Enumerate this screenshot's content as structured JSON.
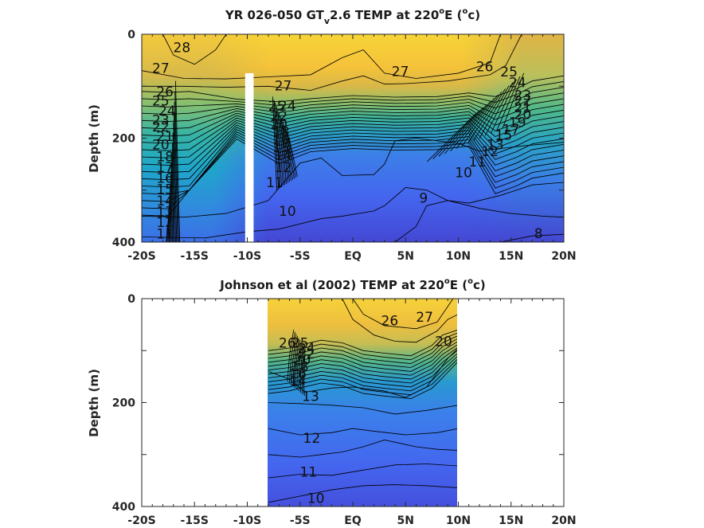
{
  "chart_data": [
    {
      "type": "contour",
      "title": {
        "prefix": "YR 026-050 GT",
        "subscript": "v",
        "middle": "2.6 TEMP at 220",
        "sup1": "o",
        "mid2": "E (",
        "sup2": "o",
        "suffix": "c)"
      },
      "ylabel": "Depth (m)",
      "xlim": [
        -20,
        20
      ],
      "ylim": [
        400,
        0
      ],
      "xticks": [
        -20,
        -15,
        -10,
        -5,
        0,
        5,
        10,
        15,
        20
      ],
      "xticklabels": [
        "-20S",
        "-15S",
        "-10S",
        "-5S",
        "EQ",
        "5N",
        "10N",
        "15N",
        "20N"
      ],
      "yticks": [
        0,
        200,
        400
      ],
      "yticklabels": [
        "0",
        "200",
        "400"
      ],
      "data_extent_x": [
        -20,
        20
      ],
      "masked_strip": {
        "x": [
          -10.2,
          -9.4
        ],
        "depth": [
          75,
          400
        ]
      },
      "contour_levels": [
        8,
        9,
        10,
        11,
        12,
        13,
        14,
        15,
        16,
        17,
        18,
        19,
        20,
        21,
        22,
        23,
        24,
        25,
        26,
        27,
        28
      ],
      "contour_labels": [
        {
          "text": "28",
          "x": -16.2,
          "y": 25
        },
        {
          "text": "27",
          "x": -18.2,
          "y": 65
        },
        {
          "text": "26",
          "x": -17.8,
          "y": 110
        },
        {
          "text": "25",
          "x": -18.2,
          "y": 128
        },
        {
          "text": "24",
          "x": -17.6,
          "y": 147
        },
        {
          "text": "23",
          "x": -18.2,
          "y": 165
        },
        {
          "text": "22",
          "x": -18.2,
          "y": 178
        },
        {
          "text": "21",
          "x": -17.8,
          "y": 196
        },
        {
          "text": "20",
          "x": -18.2,
          "y": 212
        },
        {
          "text": "18",
          "x": -17.8,
          "y": 235
        },
        {
          "text": "17",
          "x": -17.8,
          "y": 256
        },
        {
          "text": "16",
          "x": -17.8,
          "y": 277
        },
        {
          "text": "15",
          "x": -17.8,
          "y": 298
        },
        {
          "text": "14",
          "x": -17.8,
          "y": 320
        },
        {
          "text": "13",
          "x": -17.8,
          "y": 341
        },
        {
          "text": "12",
          "x": -17.8,
          "y": 362
        },
        {
          "text": "11",
          "x": -17.8,
          "y": 384
        },
        {
          "text": "27",
          "x": -6.6,
          "y": 99
        },
        {
          "text": "25",
          "x": -7.2,
          "y": 138
        },
        {
          "text": "24",
          "x": -6.2,
          "y": 138
        },
        {
          "text": "22",
          "x": -7.0,
          "y": 158
        },
        {
          "text": "20",
          "x": -7.0,
          "y": 173
        },
        {
          "text": "18",
          "x": -6.8,
          "y": 188
        },
        {
          "text": "16",
          "x": -6.8,
          "y": 203
        },
        {
          "text": "15",
          "x": -6.8,
          "y": 218
        },
        {
          "text": "14",
          "x": -6.6,
          "y": 233
        },
        {
          "text": "12",
          "x": -6.6,
          "y": 256
        },
        {
          "text": "11",
          "x": -7.4,
          "y": 285
        },
        {
          "text": "10",
          "x": -6.2,
          "y": 340
        },
        {
          "text": "27",
          "x": 4.5,
          "y": 71
        },
        {
          "text": "9",
          "x": 6.7,
          "y": 315
        },
        {
          "text": "26",
          "x": 12.5,
          "y": 62
        },
        {
          "text": "25",
          "x": 14.8,
          "y": 72
        },
        {
          "text": "24",
          "x": 15.6,
          "y": 93
        },
        {
          "text": "23",
          "x": 16.1,
          "y": 117
        },
        {
          "text": "22",
          "x": 16.1,
          "y": 128
        },
        {
          "text": "21",
          "x": 16.1,
          "y": 141
        },
        {
          "text": "20",
          "x": 16.1,
          "y": 154
        },
        {
          "text": "19",
          "x": 15.6,
          "y": 169
        },
        {
          "text": "17",
          "x": 15.0,
          "y": 183
        },
        {
          "text": "15",
          "x": 14.3,
          "y": 194
        },
        {
          "text": "13",
          "x": 13.5,
          "y": 212
        },
        {
          "text": "12",
          "x": 13.0,
          "y": 225
        },
        {
          "text": "11",
          "x": 11.8,
          "y": 245
        },
        {
          "text": "10",
          "x": 10.5,
          "y": 266
        },
        {
          "text": "8",
          "x": 17.6,
          "y": 383
        }
      ]
    },
    {
      "type": "contour",
      "title": {
        "prefix": "Johnson et al (2002) TEMP at 220",
        "sup1": "o",
        "mid2": "E (",
        "sup2": "o",
        "suffix": "c)"
      },
      "ylabel": "Depth (m)",
      "xlim": [
        -20,
        20
      ],
      "ylim": [
        400,
        0
      ],
      "xticks": [
        -20,
        -15,
        -10,
        -5,
        0,
        5,
        10,
        15,
        20
      ],
      "xticklabels": [
        "-20S",
        "-15S",
        "-10S",
        "-5S",
        "EQ",
        "5N",
        "10N",
        "15N",
        "20N"
      ],
      "yticks": [
        0,
        200,
        400
      ],
      "yticklabels": [
        "0",
        "200",
        "400"
      ],
      "data_extent_x": [
        -8,
        10
      ],
      "contour_levels": [
        10,
        11,
        12,
        13,
        14,
        15,
        16,
        17,
        18,
        19,
        20,
        21,
        22,
        23,
        24,
        25,
        26,
        27,
        28
      ],
      "contour_labels": [
        {
          "text": "26",
          "x": 3.5,
          "y": 42
        },
        {
          "text": "27",
          "x": 6.8,
          "y": 35
        },
        {
          "text": "26",
          "x": -6.2,
          "y": 85
        },
        {
          "text": "25",
          "x": -5.0,
          "y": 85
        },
        {
          "text": "24",
          "x": -4.4,
          "y": 95
        },
        {
          "text": "22",
          "x": -4.4,
          "y": 106
        },
        {
          "text": "20",
          "x": -4.8,
          "y": 117
        },
        {
          "text": "18",
          "x": -5.0,
          "y": 130
        },
        {
          "text": "16",
          "x": -5.2,
          "y": 144
        },
        {
          "text": "14",
          "x": -5.2,
          "y": 158
        },
        {
          "text": "13",
          "x": -4.0,
          "y": 188
        },
        {
          "text": "12",
          "x": -3.9,
          "y": 268
        },
        {
          "text": "11",
          "x": -4.2,
          "y": 333
        },
        {
          "text": "10",
          "x": -3.5,
          "y": 384
        },
        {
          "text": "20",
          "x": 8.6,
          "y": 82
        }
      ]
    }
  ]
}
